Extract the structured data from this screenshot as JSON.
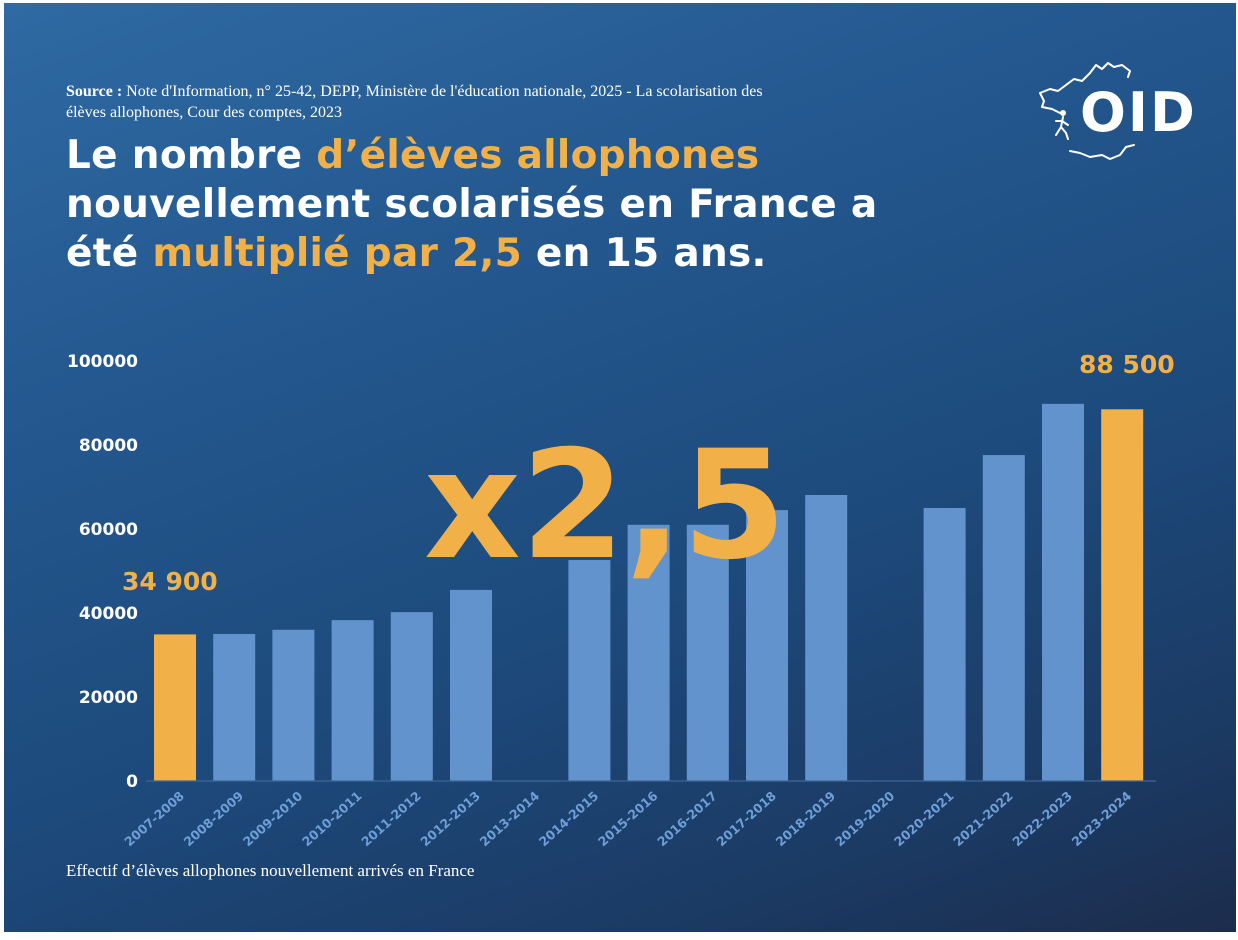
{
  "source": {
    "label": "Source :",
    "text": " Note d'Information, n° 25-42, DEPP, Ministère de l'éducation nationale, 2025 - La scolarisation des élèves allophones, Cour des comptes, 2023"
  },
  "headline": {
    "part1": "Le nombre ",
    "part2": "d’élèves allophones",
    "part3": " nouvellement scolarisés en France a été ",
    "part4": "multiplié par 2,5",
    "part5": " en 15 ans."
  },
  "logo": {
    "text": "OID",
    "icon": "france-map-runner-icon"
  },
  "colors": {
    "accent": "#f2b148",
    "bar": "#6393cc",
    "tick": "#6f9fd8",
    "background_start": "#2f6aa3",
    "background_end": "#1c2c4c"
  },
  "chart_data": {
    "type": "bar",
    "title": "Le nombre d’élèves allophones nouvellement scolarisés en France a été multiplié par 2,5 en 15 ans.",
    "xlabel": "Effectif d’élèves allophones nouvellement arrivés en France",
    "ylabel": "",
    "ylim": [
      0,
      100000
    ],
    "yticks": [
      "0",
      "20000",
      "40000",
      "60000",
      "80000",
      "100000"
    ],
    "ytick_values": [
      0,
      20000,
      40000,
      60000,
      80000,
      100000
    ],
    "grid": false,
    "categories": [
      "2007-2008",
      "2008-2009",
      "2009-2010",
      "2010-2011",
      "2011-2012",
      "2012-2013",
      "2013-2014",
      "2014-2015",
      "2015-2016",
      "2016-2017",
      "2017-2018",
      "2018-2019",
      "2019-2020",
      "2020-2021",
      "2021-2022",
      "2022-2023",
      "2023-2024"
    ],
    "values": [
      34900,
      35000,
      36000,
      38300,
      40200,
      45500,
      null,
      52600,
      61000,
      61000,
      64500,
      68100,
      null,
      65000,
      77600,
      89800,
      88500
    ],
    "highlighted": [
      0,
      16
    ],
    "annotations": [
      {
        "text": "34 900",
        "category": "2007-2008"
      },
      {
        "text": "88 500",
        "category": "2023-2024"
      },
      {
        "text": "x2,5",
        "category": "2015-2016"
      }
    ]
  }
}
